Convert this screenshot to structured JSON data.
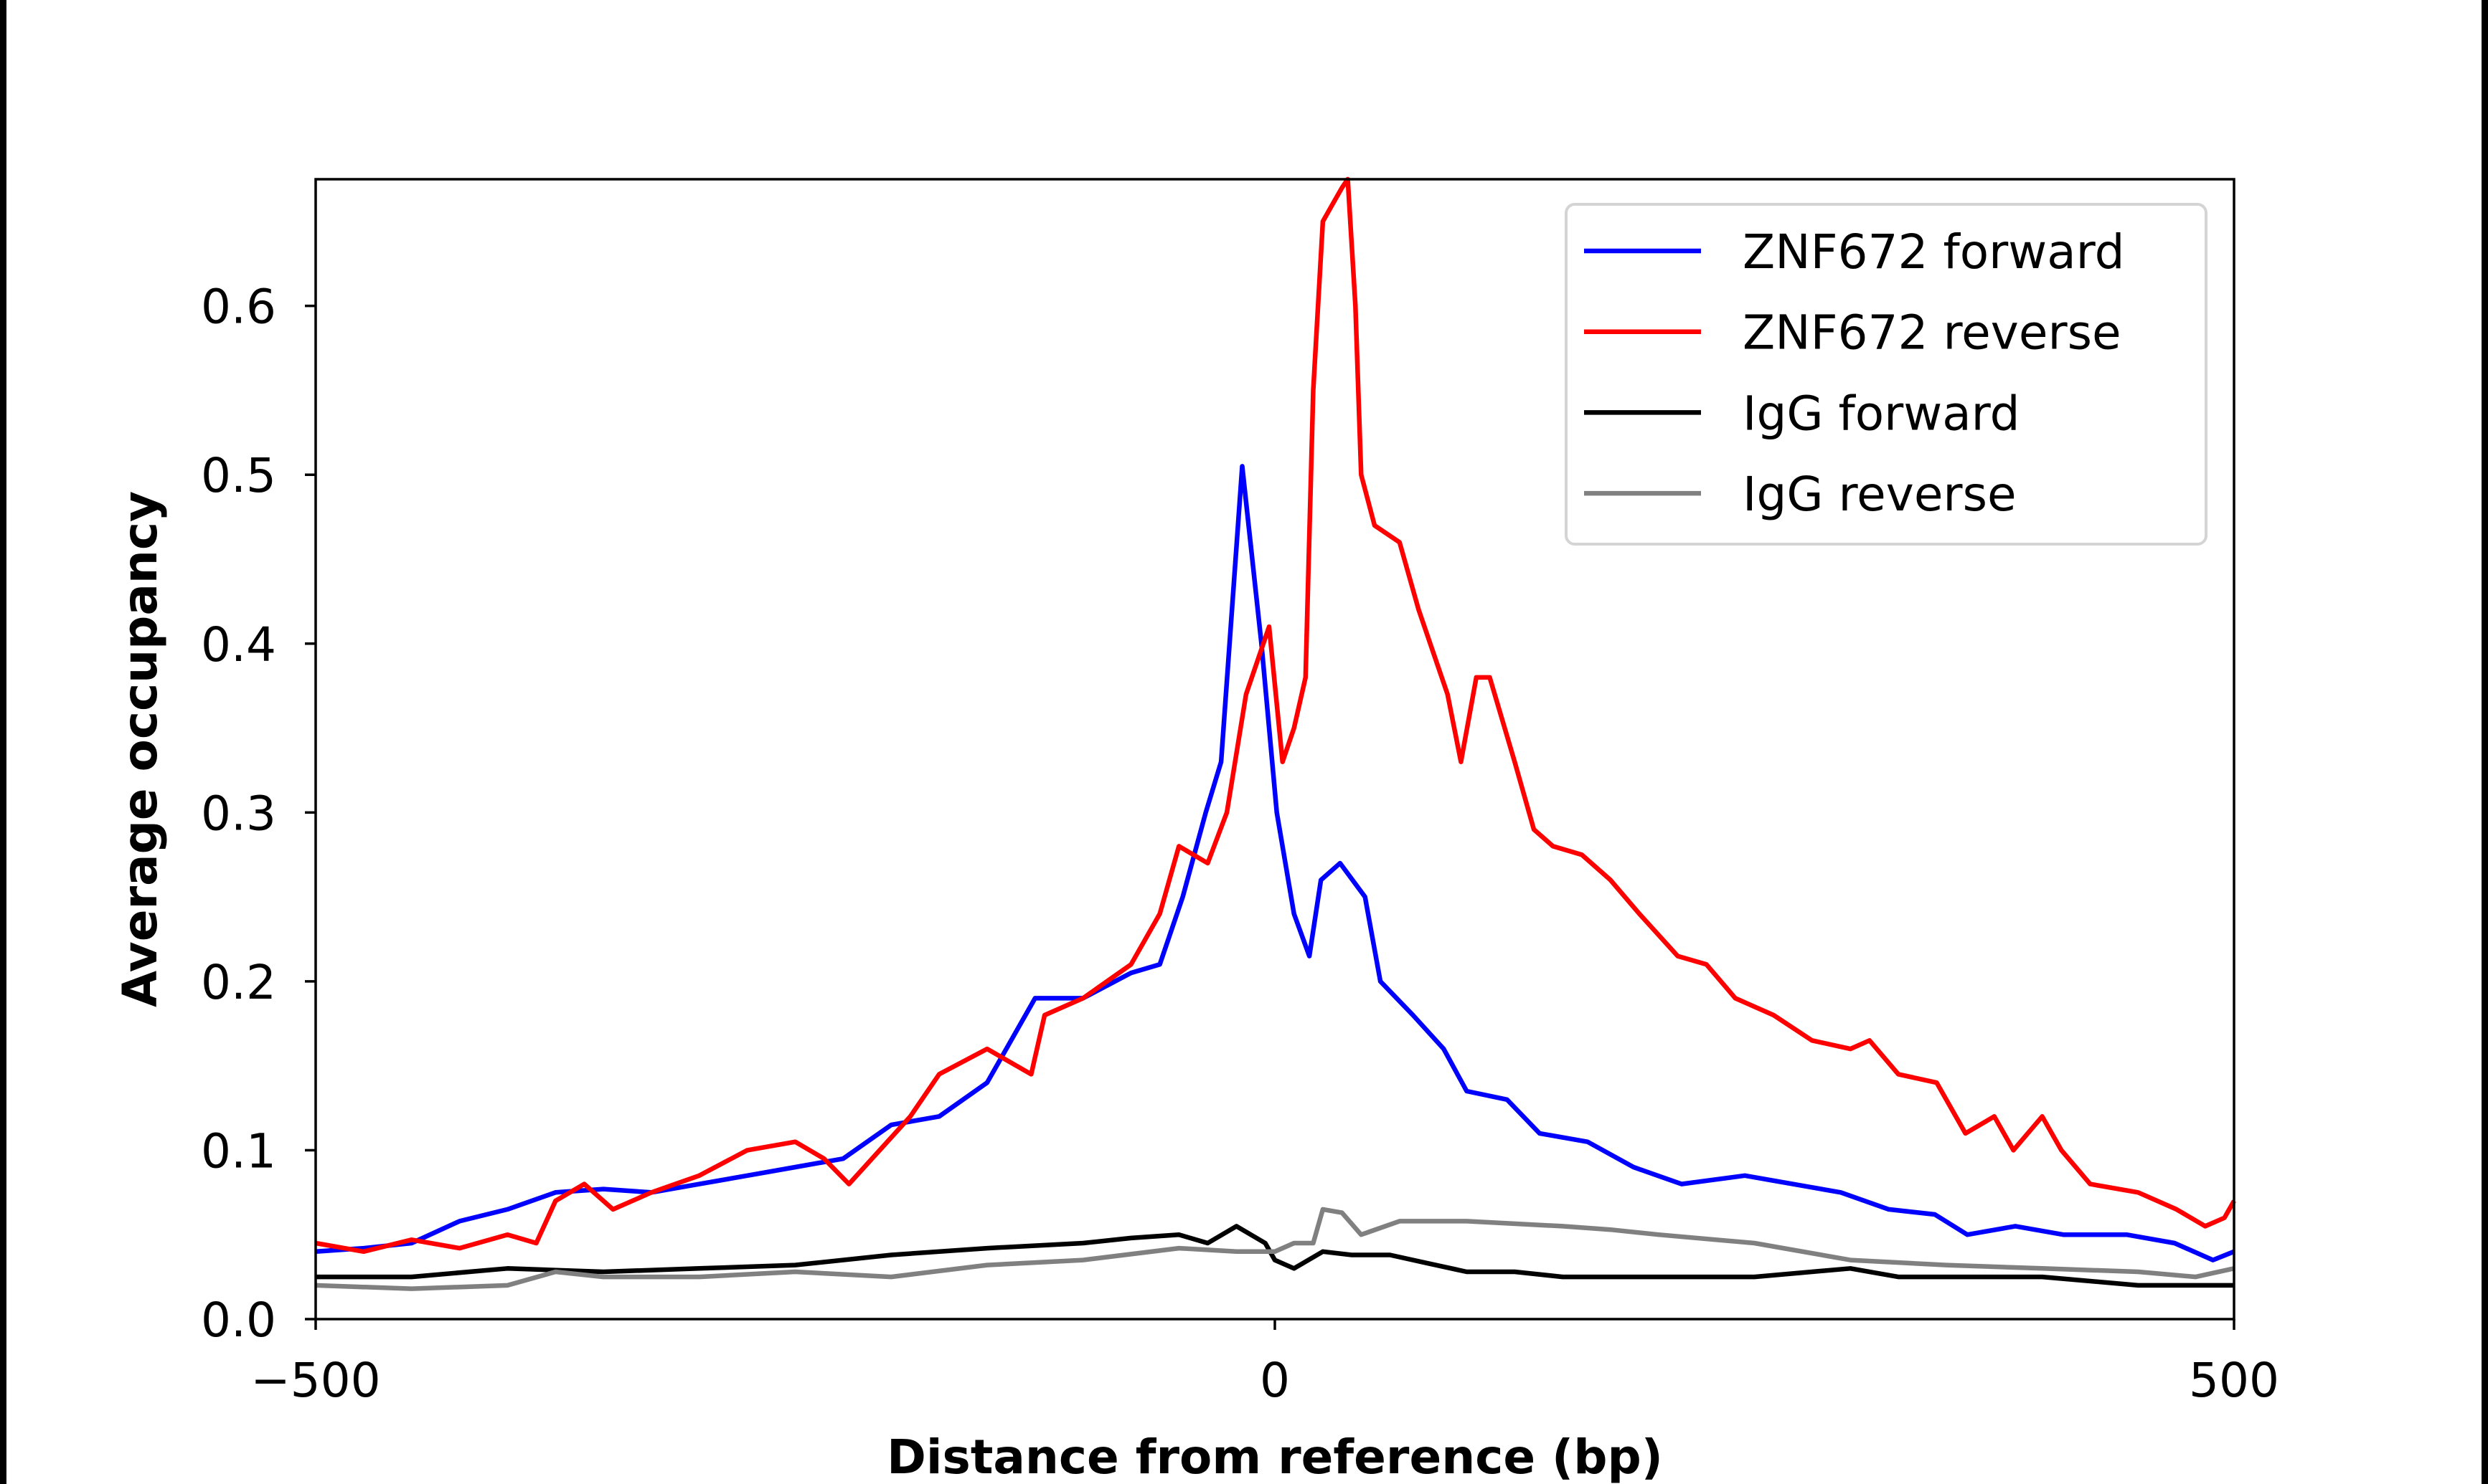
{
  "chart_data": {
    "type": "line",
    "title": "",
    "xlabel": "Distance from reference (bp)",
    "ylabel": "Average occupancy",
    "xlim": [
      -500,
      500
    ],
    "ylim": [
      0,
      0.675
    ],
    "xticks": [
      -500,
      0,
      500
    ],
    "xtick_labels": [
      "−500",
      "0",
      "500"
    ],
    "yticks": [
      0,
      0.1,
      0.2,
      0.3,
      0.4,
      0.5,
      0.6
    ],
    "ytick_labels": [
      "0.0",
      "0.1",
      "0.2",
      "0.3",
      "0.4",
      "0.5",
      "0.6"
    ],
    "grid": false,
    "legend_position": "top-right",
    "series": [
      {
        "name": "ZNF672 forward",
        "color": "#0000ff",
        "x": [
          -500,
          -475,
          -450,
          -425,
          -400,
          -375,
          -350,
          -325,
          -300,
          -275,
          -250,
          -225,
          -200,
          -175,
          -150,
          -125,
          -100,
          -75,
          -60,
          -48,
          -36,
          -28,
          -17,
          -7,
          1,
          10,
          18,
          24,
          34,
          47,
          55,
          72,
          88,
          100,
          121,
          138,
          163,
          187,
          212,
          245,
          270,
          295,
          320,
          344,
          361,
          386,
          411,
          444,
          469,
          489,
          500
        ],
        "y": [
          0.04,
          0.042,
          0.045,
          0.058,
          0.065,
          0.075,
          0.077,
          0.075,
          0.08,
          0.085,
          0.09,
          0.095,
          0.115,
          0.12,
          0.14,
          0.19,
          0.19,
          0.205,
          0.21,
          0.25,
          0.3,
          0.33,
          0.505,
          0.4,
          0.3,
          0.24,
          0.215,
          0.26,
          0.27,
          0.25,
          0.2,
          0.18,
          0.16,
          0.135,
          0.13,
          0.11,
          0.105,
          0.09,
          0.08,
          0.085,
          0.08,
          0.075,
          0.065,
          0.062,
          0.05,
          0.055,
          0.05,
          0.05,
          0.045,
          0.035,
          0.04
        ]
      },
      {
        "name": "ZNF672 reverse",
        "color": "#ff0000",
        "x": [
          -500,
          -475,
          -450,
          -425,
          -400,
          -385,
          -375,
          -360,
          -345,
          -325,
          -300,
          -275,
          -250,
          -235,
          -222,
          -210,
          -190,
          -175,
          -150,
          -127,
          -120,
          -100,
          -75,
          -60,
          -50,
          -35,
          -25,
          -15,
          -3,
          4,
          10,
          16,
          20,
          25,
          30,
          35,
          38,
          42,
          45,
          52,
          65,
          75,
          90,
          97,
          105,
          112,
          125,
          135,
          145,
          160,
          175,
          190,
          210,
          225,
          240,
          260,
          280,
          300,
          310,
          325,
          345,
          360,
          375,
          385,
          400,
          410,
          425,
          450,
          470,
          485,
          495,
          500
        ],
        "y": [
          0.045,
          0.04,
          0.047,
          0.042,
          0.05,
          0.045,
          0.07,
          0.08,
          0.065,
          0.075,
          0.085,
          0.1,
          0.105,
          0.095,
          0.08,
          0.095,
          0.12,
          0.145,
          0.16,
          0.145,
          0.18,
          0.19,
          0.21,
          0.24,
          0.28,
          0.27,
          0.3,
          0.37,
          0.41,
          0.33,
          0.35,
          0.38,
          0.55,
          0.65,
          0.66,
          0.67,
          0.675,
          0.6,
          0.5,
          0.47,
          0.46,
          0.42,
          0.37,
          0.33,
          0.38,
          0.38,
          0.33,
          0.29,
          0.28,
          0.275,
          0.26,
          0.24,
          0.215,
          0.21,
          0.19,
          0.18,
          0.165,
          0.16,
          0.165,
          0.145,
          0.14,
          0.11,
          0.12,
          0.1,
          0.12,
          0.1,
          0.08,
          0.075,
          0.065,
          0.055,
          0.06,
          0.07
        ]
      },
      {
        "name": "IgG forward",
        "color": "#000000",
        "x": [
          -500,
          -450,
          -400,
          -350,
          -300,
          -250,
          -200,
          -150,
          -100,
          -75,
          -50,
          -35,
          -20,
          -5,
          0,
          10,
          25,
          40,
          60,
          80,
          100,
          125,
          150,
          200,
          250,
          300,
          325,
          350,
          400,
          450,
          500
        ],
        "y": [
          0.025,
          0.025,
          0.03,
          0.028,
          0.03,
          0.032,
          0.038,
          0.042,
          0.045,
          0.048,
          0.05,
          0.045,
          0.055,
          0.045,
          0.035,
          0.03,
          0.04,
          0.038,
          0.038,
          0.033,
          0.028,
          0.028,
          0.025,
          0.025,
          0.025,
          0.03,
          0.025,
          0.025,
          0.025,
          0.02,
          0.02
        ]
      },
      {
        "name": "IgG reverse",
        "color": "#808080",
        "x": [
          -500,
          -450,
          -400,
          -375,
          -350,
          -300,
          -250,
          -200,
          -150,
          -100,
          -50,
          -20,
          0,
          10,
          20,
          25,
          35,
          45,
          65,
          100,
          150,
          175,
          200,
          250,
          300,
          350,
          400,
          450,
          480,
          500
        ],
        "y": [
          0.02,
          0.018,
          0.02,
          0.028,
          0.025,
          0.025,
          0.028,
          0.025,
          0.032,
          0.035,
          0.042,
          0.04,
          0.04,
          0.045,
          0.045,
          0.065,
          0.063,
          0.05,
          0.058,
          0.058,
          0.055,
          0.053,
          0.05,
          0.045,
          0.035,
          0.032,
          0.03,
          0.028,
          0.025,
          0.03
        ]
      }
    ]
  }
}
